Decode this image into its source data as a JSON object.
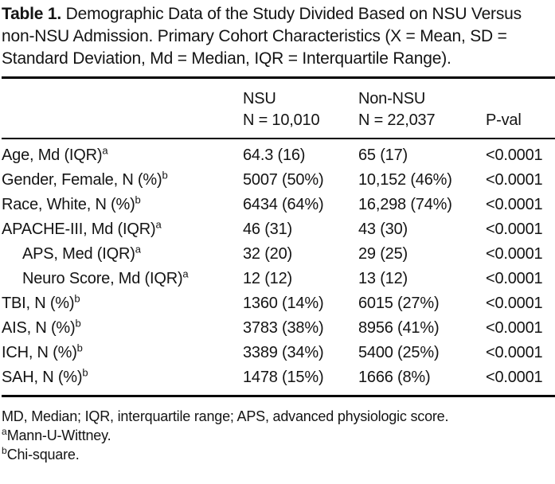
{
  "caption": {
    "label": "Table 1.",
    "text": " Demographic Data of the Study Divided Based on NSU Versus non-NSU Admission. Primary Cohort Characteristics (X = Mean, SD = Standard Deviation, Md = Median, IQR = Interquartile Range)."
  },
  "table": {
    "header": {
      "nsu_line1": "NSU",
      "nsu_line2": "N = 10,010",
      "non_nsu_line1": "Non-NSU",
      "non_nsu_line2": "N = 22,037",
      "pval": "P-val"
    },
    "rows": [
      {
        "label": "Age, Md (IQR)",
        "sup": "a",
        "nsu": "64.3 (16)",
        "non_nsu": "65 (17)",
        "pval": "<0.0001"
      },
      {
        "label": "Gender, Female, N (%)",
        "sup": "b",
        "nsu": "5007 (50%)",
        "non_nsu": "10,152 (46%)",
        "pval": "<0.0001"
      },
      {
        "label": "Race, White, N (%)",
        "sup": "b",
        "nsu": "6434 (64%)",
        "non_nsu": "16,298 (74%)",
        "pval": "<0.0001"
      },
      {
        "label": "APACHE-III, Md (IQR)",
        "sup": "a",
        "nsu": "46 (31)",
        "non_nsu": "43 (30)",
        "pval": "<0.0001"
      },
      {
        "label": "APS, Med (IQR)",
        "sup": "a",
        "nsu": "32 (20)",
        "non_nsu": "29 (25)",
        "pval": "<0.0001"
      },
      {
        "label": "Neuro Score, Md (IQR)",
        "sup": "a",
        "nsu": "12 (12)",
        "non_nsu": "13 (12)",
        "pval": "<0.0001"
      },
      {
        "label": "TBI, N (%)",
        "sup": "b",
        "nsu": "1360 (14%)",
        "non_nsu": "6015 (27%)",
        "pval": "<0.0001"
      },
      {
        "label": "AIS, N (%)",
        "sup": "b",
        "nsu": "3783 (38%)",
        "non_nsu": "8956 (41%)",
        "pval": "<0.0001"
      },
      {
        "label": "ICH, N (%)",
        "sup": "b",
        "nsu": "3389 (34%)",
        "non_nsu": "5400 (25%)",
        "pval": "<0.0001"
      },
      {
        "label": "SAH, N (%)",
        "sup": "b",
        "nsu": "1478 (15%)",
        "non_nsu": "1666 (8%)",
        "pval": "<0.0001"
      }
    ]
  },
  "footnotes": {
    "abbrev": "MD, Median; IQR, interquartile range; APS, advanced physiologic score.",
    "a": {
      "sup": "a",
      "text": "Mann-U-Wittney."
    },
    "b": {
      "sup": "b",
      "text": "Chi-square."
    }
  },
  "colors": {
    "text": "#141414",
    "background": "#ffffff",
    "rule": "#000000"
  }
}
